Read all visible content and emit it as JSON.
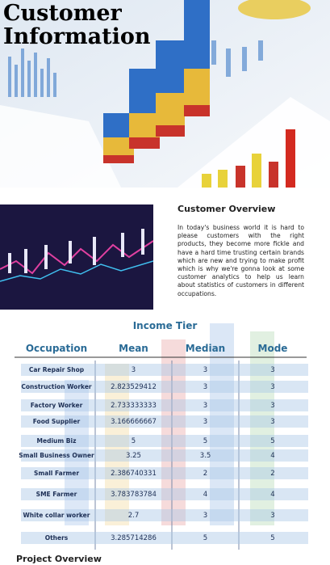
{
  "header": {
    "title": "Customer Information"
  },
  "overview": {
    "heading": "Customer Overview",
    "text": "In today's business world it is hard to please customers with the right products, they become more fickle and have a hard time trusting certain brands which are new and trying to make profit which is why we're gonna look at some customer analytics to help us learn about statistics of customers in different occupations."
  },
  "table": {
    "title": "Income Tier",
    "columns": [
      "Occupation",
      "Mean",
      "Median",
      "Mode"
    ],
    "rows": [
      [
        "Car Repair Shop",
        3,
        3,
        3
      ],
      [
        "Construction Worker",
        2.823529412,
        3,
        3
      ],
      [
        "Factory Worker",
        2.733333333,
        3,
        3
      ],
      [
        "Food Supplier",
        3.166666667,
        3,
        3
      ],
      [
        "Medium Biz",
        5,
        5,
        5
      ],
      [
        "Small Business Owner",
        3.25,
        3.5,
        4
      ],
      [
        "Small Farmer",
        2.386740331,
        2,
        2
      ],
      [
        "SME Farmer",
        3.783783784,
        4,
        4
      ],
      [
        "White collar worker",
        2.7,
        3,
        3
      ],
      [
        "Others",
        3.285714286,
        5,
        5
      ]
    ]
  },
  "footer": {
    "heading": "Project Overview"
  }
}
